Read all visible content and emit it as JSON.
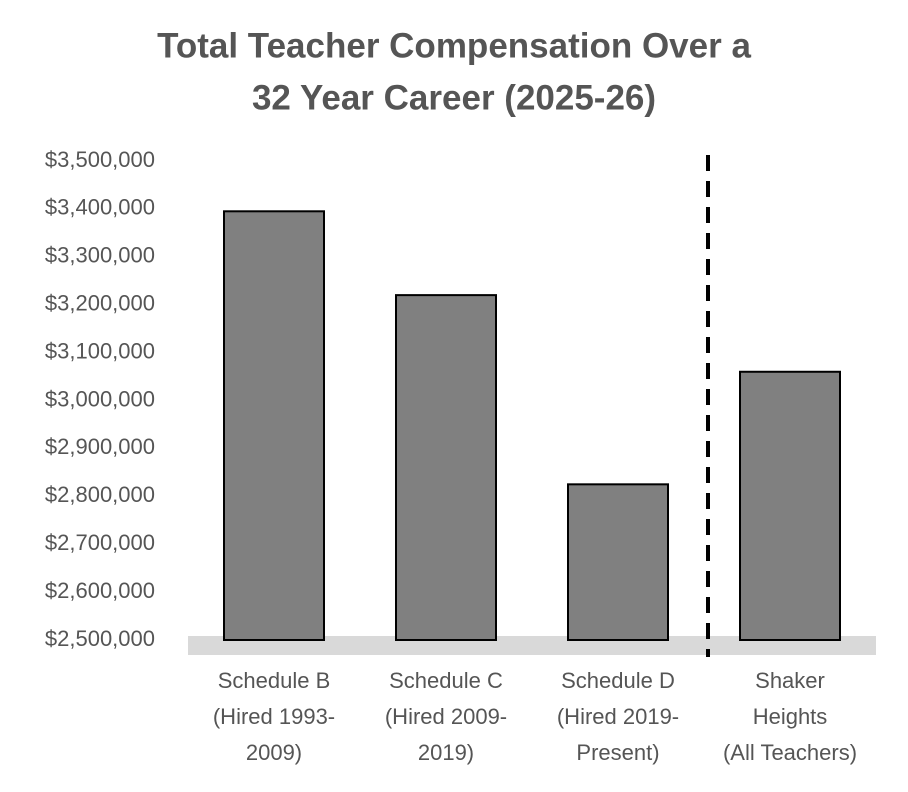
{
  "chart_data": {
    "type": "bar",
    "title": [
      "Total Teacher Compensation Over a",
      "32 Year Career (2025-26)"
    ],
    "categories": [
      [
        "Schedule B",
        "(Hired 1993-",
        "2009)"
      ],
      [
        "Schedule C",
        "(Hired 2009-",
        "2019)"
      ],
      [
        "Schedule D",
        "(Hired 2019-",
        "Present)"
      ],
      [
        "Shaker",
        "Heights",
        "(All Teachers)"
      ]
    ],
    "values": [
      3395000,
      3220000,
      2825000,
      3060000
    ],
    "color": "#808080",
    "ylim": [
      2500000,
      3500000
    ],
    "yticks": [
      {
        "value": 2500000,
        "label": "$2,500,000"
      },
      {
        "value": 2600000,
        "label": "$2,600,000"
      },
      {
        "value": 2700000,
        "label": "$2,700,000"
      },
      {
        "value": 2800000,
        "label": "$2,800,000"
      },
      {
        "value": 2900000,
        "label": "$2,900,000"
      },
      {
        "value": 3000000,
        "label": "$3,000,000"
      },
      {
        "value": 3100000,
        "label": "$3,100,000"
      },
      {
        "value": 3200000,
        "label": "$3,200,000"
      },
      {
        "value": 3300000,
        "label": "$3,300,000"
      },
      {
        "value": 3400000,
        "label": "$3,400,000"
      },
      {
        "value": 3500000,
        "label": "$3,500,000"
      }
    ],
    "grid": false
  }
}
